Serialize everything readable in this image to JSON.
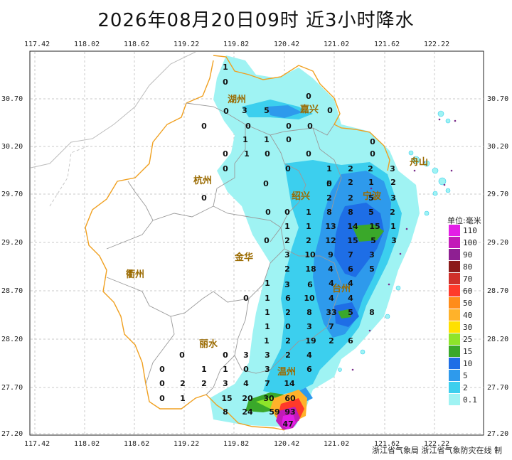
{
  "title": "2026年08月20日09时  近3小时降水",
  "x_ticks": [
    "117.42",
    "118.02",
    "118.62",
    "119.22",
    "119.82",
    "120.42",
    "121.02",
    "121.62",
    "122.22"
  ],
  "y_ticks": [
    "30.70",
    "30.20",
    "29.70",
    "29.20",
    "28.70",
    "28.20",
    "27.70",
    "27.20"
  ],
  "cities": [
    "湖州",
    "嘉兴",
    "杭州",
    "绍兴",
    "宁波",
    "舟山",
    "衢州",
    "金华",
    "台州",
    "丽水",
    "温州"
  ],
  "legend": {
    "title": "单位:毫米",
    "items": [
      {
        "label": "110",
        "color": "#e31ee6"
      },
      {
        "label": "100",
        "color": "#c21ab8"
      },
      {
        "label": "90",
        "color": "#8e1f92"
      },
      {
        "label": "80",
        "color": "#8b1a1a"
      },
      {
        "label": "70",
        "color": "#d0302a"
      },
      {
        "label": "60",
        "color": "#ff3a2a"
      },
      {
        "label": "50",
        "color": "#ff8c1a"
      },
      {
        "label": "40",
        "color": "#ffb22a"
      },
      {
        "label": "30",
        "color": "#ffe000"
      },
      {
        "label": "25",
        "color": "#8ee42a"
      },
      {
        "label": "15",
        "color": "#3aa82a"
      },
      {
        "label": "10",
        "color": "#1e6ee6"
      },
      {
        "label": "5",
        "color": "#2e9aec"
      },
      {
        "label": "2",
        "color": "#3ccfee"
      },
      {
        "label": "0.1",
        "color": "#9ff3f3"
      }
    ]
  },
  "stations": [
    {
      "v": "1",
      "x": 317,
      "y": 98
    },
    {
      "v": "0",
      "x": 317,
      "y": 119
    },
    {
      "v": "0",
      "x": 434,
      "y": 139
    },
    {
      "v": "0",
      "x": 318,
      "y": 160
    },
    {
      "v": "3",
      "x": 344,
      "y": 159
    },
    {
      "v": "5",
      "x": 375,
      "y": 159
    },
    {
      "v": "0",
      "x": 464,
      "y": 159
    },
    {
      "v": "0",
      "x": 287,
      "y": 181
    },
    {
      "v": "0",
      "x": 349,
      "y": 181
    },
    {
      "v": "0",
      "x": 406,
      "y": 181
    },
    {
      "v": "0",
      "x": 436,
      "y": 181
    },
    {
      "v": "1",
      "x": 345,
      "y": 200
    },
    {
      "v": "1",
      "x": 375,
      "y": 200
    },
    {
      "v": "0",
      "x": 406,
      "y": 200
    },
    {
      "v": "0",
      "x": 524,
      "y": 203
    },
    {
      "v": "0",
      "x": 317,
      "y": 220
    },
    {
      "v": "1",
      "x": 347,
      "y": 220
    },
    {
      "v": "0",
      "x": 376,
      "y": 220
    },
    {
      "v": "0",
      "x": 434,
      "y": 220
    },
    {
      "v": "0",
      "x": 524,
      "y": 220
    },
    {
      "v": "0",
      "x": 317,
      "y": 241
    },
    {
      "v": "0",
      "x": 405,
      "y": 241
    },
    {
      "v": "1",
      "x": 463,
      "y": 241
    },
    {
      "v": "2",
      "x": 493,
      "y": 241
    },
    {
      "v": "2",
      "x": 521,
      "y": 241
    },
    {
      "v": "3",
      "x": 552,
      "y": 241
    },
    {
      "v": "0",
      "x": 374,
      "y": 262
    },
    {
      "v": "0",
      "x": 463,
      "y": 262
    },
    {
      "v": "5",
      "x": 463,
      "y": 262
    },
    {
      "v": "2",
      "x": 493,
      "y": 260
    },
    {
      "v": "1",
      "x": 522,
      "y": 260
    },
    {
      "v": "2",
      "x": 553,
      "y": 260
    },
    {
      "v": "0",
      "x": 287,
      "y": 282
    },
    {
      "v": "2",
      "x": 463,
      "y": 282
    },
    {
      "v": "2",
      "x": 493,
      "y": 282
    },
    {
      "v": "5",
      "x": 522,
      "y": 282
    },
    {
      "v": "3",
      "x": 553,
      "y": 282
    },
    {
      "v": "0",
      "x": 377,
      "y": 302
    },
    {
      "v": "0",
      "x": 404,
      "y": 302
    },
    {
      "v": "1",
      "x": 434,
      "y": 302
    },
    {
      "v": "8",
      "x": 463,
      "y": 302
    },
    {
      "v": "8",
      "x": 493,
      "y": 302
    },
    {
      "v": "5",
      "x": 522,
      "y": 302
    },
    {
      "v": "2",
      "x": 552,
      "y": 302
    },
    {
      "v": "1",
      "x": 404,
      "y": 322
    },
    {
      "v": "1",
      "x": 434,
      "y": 322
    },
    {
      "v": "13",
      "x": 465,
      "y": 322
    },
    {
      "v": "14",
      "x": 496,
      "y": 322
    },
    {
      "v": "15",
      "x": 527,
      "y": 322
    },
    {
      "v": "1",
      "x": 553,
      "y": 322
    },
    {
      "v": "0",
      "x": 375,
      "y": 342
    },
    {
      "v": "2",
      "x": 404,
      "y": 342
    },
    {
      "v": "2",
      "x": 434,
      "y": 342
    },
    {
      "v": "12",
      "x": 465,
      "y": 342
    },
    {
      "v": "15",
      "x": 496,
      "y": 342
    },
    {
      "v": "5",
      "x": 525,
      "y": 342
    },
    {
      "v": "3",
      "x": 554,
      "y": 342
    },
    {
      "v": "3",
      "x": 404,
      "y": 362
    },
    {
      "v": "10",
      "x": 436,
      "y": 362
    },
    {
      "v": "9",
      "x": 465,
      "y": 362
    },
    {
      "v": "7",
      "x": 493,
      "y": 362
    },
    {
      "v": "3",
      "x": 523,
      "y": 362
    },
    {
      "v": "2",
      "x": 404,
      "y": 382
    },
    {
      "v": "18",
      "x": 437,
      "y": 382
    },
    {
      "v": "4",
      "x": 465,
      "y": 382
    },
    {
      "v": "6",
      "x": 493,
      "y": 382
    },
    {
      "v": "5",
      "x": 523,
      "y": 382
    },
    {
      "v": "1",
      "x": 376,
      "y": 402
    },
    {
      "v": "3",
      "x": 404,
      "y": 404
    },
    {
      "v": "6",
      "x": 436,
      "y": 404
    },
    {
      "v": "4",
      "x": 466,
      "y": 402
    },
    {
      "v": "4",
      "x": 493,
      "y": 402
    },
    {
      "v": "0",
      "x": 346,
      "y": 423
    },
    {
      "v": "1",
      "x": 376,
      "y": 423
    },
    {
      "v": "6",
      "x": 405,
      "y": 423
    },
    {
      "v": "10",
      "x": 435,
      "y": 423
    },
    {
      "v": "4",
      "x": 466,
      "y": 423
    },
    {
      "v": "4",
      "x": 493,
      "y": 423
    },
    {
      "v": "1",
      "x": 376,
      "y": 443
    },
    {
      "v": "2",
      "x": 405,
      "y": 443
    },
    {
      "v": "8",
      "x": 435,
      "y": 443
    },
    {
      "v": "33",
      "x": 466,
      "y": 443
    },
    {
      "v": "5",
      "x": 493,
      "y": 443
    },
    {
      "v": "8",
      "x": 523,
      "y": 443
    },
    {
      "v": "1",
      "x": 376,
      "y": 463
    },
    {
      "v": "0",
      "x": 405,
      "y": 463
    },
    {
      "v": "3",
      "x": 435,
      "y": 463
    },
    {
      "v": "7",
      "x": 466,
      "y": 463
    },
    {
      "v": "1",
      "x": 375,
      "y": 483
    },
    {
      "v": "2",
      "x": 405,
      "y": 483
    },
    {
      "v": "19",
      "x": 437,
      "y": 483
    },
    {
      "v": "2",
      "x": 466,
      "y": 483
    },
    {
      "v": "6",
      "x": 493,
      "y": 483
    },
    {
      "v": "0",
      "x": 256,
      "y": 503
    },
    {
      "v": "0",
      "x": 317,
      "y": 503
    },
    {
      "v": "3",
      "x": 346,
      "y": 503
    },
    {
      "v": "3",
      "x": 376,
      "y": 503
    },
    {
      "v": "2",
      "x": 405,
      "y": 503
    },
    {
      "v": "4",
      "x": 435,
      "y": 503
    },
    {
      "v": "0",
      "x": 228,
      "y": 523
    },
    {
      "v": "1",
      "x": 287,
      "y": 523
    },
    {
      "v": "1",
      "x": 317,
      "y": 523
    },
    {
      "v": "0",
      "x": 346,
      "y": 523
    },
    {
      "v": "3",
      "x": 376,
      "y": 523
    },
    {
      "v": "6",
      "x": 435,
      "y": 523
    },
    {
      "v": "0",
      "x": 228,
      "y": 543
    },
    {
      "v": "2",
      "x": 257,
      "y": 543
    },
    {
      "v": "2",
      "x": 287,
      "y": 543
    },
    {
      "v": "3",
      "x": 317,
      "y": 543
    },
    {
      "v": "4",
      "x": 346,
      "y": 543
    },
    {
      "v": "7",
      "x": 376,
      "y": 543
    },
    {
      "v": "14",
      "x": 407,
      "y": 543
    },
    {
      "v": "0",
      "x": 228,
      "y": 564
    },
    {
      "v": "1",
      "x": 257,
      "y": 564
    },
    {
      "v": "15",
      "x": 319,
      "y": 564
    },
    {
      "v": "20",
      "x": 348,
      "y": 564
    },
    {
      "v": "30",
      "x": 378,
      "y": 564
    },
    {
      "v": "60",
      "x": 408,
      "y": 564
    },
    {
      "v": "8",
      "x": 317,
      "y": 583
    },
    {
      "v": "24",
      "x": 348,
      "y": 583
    },
    {
      "v": "59",
      "x": 386,
      "y": 583
    },
    {
      "v": "93",
      "x": 408,
      "y": 583
    },
    {
      "v": "47",
      "x": 405,
      "y": 600
    }
  ],
  "footer": "浙江省气象局  浙江省气象防灾在线  制"
}
